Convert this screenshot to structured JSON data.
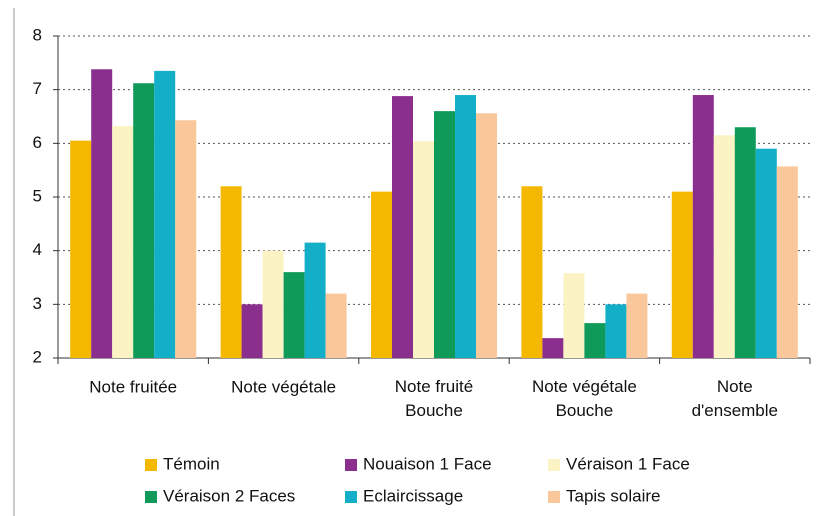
{
  "chart_data": {
    "type": "bar",
    "categories": [
      "Note fruitée",
      "Note végétale",
      "Note fruité\nBouche",
      "Note végétale\nBouche",
      "Note\nd'ensemble"
    ],
    "series": [
      {
        "name": "Témoin",
        "color": "#f5b800",
        "values": [
          6.05,
          5.2,
          5.1,
          5.2,
          5.1
        ]
      },
      {
        "name": "Nouaison 1 Face",
        "color": "#8b2f8f",
        "values": [
          7.38,
          3.0,
          6.88,
          2.37,
          6.9
        ]
      },
      {
        "name": "Véraison 1 Face",
        "color": "#fbf3c4",
        "values": [
          6.32,
          4.0,
          6.04,
          3.58,
          6.15
        ]
      },
      {
        "name": "Véraison 2 Faces",
        "color": "#0f9a5a",
        "values": [
          7.12,
          3.6,
          6.6,
          2.65,
          6.3
        ]
      },
      {
        "name": "Eclaircissage",
        "color": "#13afc9",
        "values": [
          7.35,
          4.15,
          6.9,
          3.0,
          5.9
        ]
      },
      {
        "name": "Tapis solaire",
        "color": "#f9c79a",
        "values": [
          6.43,
          3.2,
          6.56,
          3.2,
          5.57
        ]
      }
    ],
    "ylim": [
      2,
      8
    ],
    "yticks": [
      2,
      3,
      4,
      5,
      6,
      7,
      8
    ],
    "grid": true,
    "legend": "bottom"
  }
}
